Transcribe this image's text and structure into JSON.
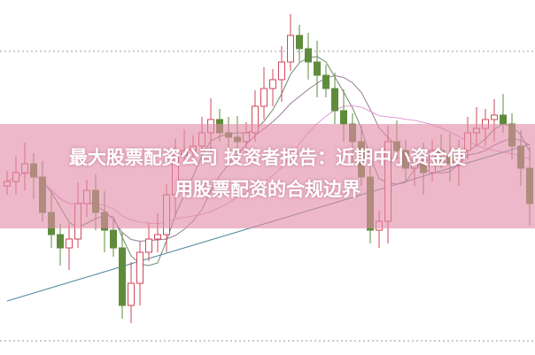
{
  "title_line1": "最大股票配资公司 投资者报告：近期中小资金使",
  "title_line2": "用股票配资的合规边界",
  "colors": {
    "up": "#d0475a",
    "down": "#5e8c3c",
    "banner": "#e28ca8",
    "ma_lines": [
      "#6e8a6e",
      "#9a7a9a",
      "#e39ad8",
      "#4a8a9a"
    ]
  },
  "chart_data": {
    "type": "candlestick",
    "closes": [
      195,
      205,
      215,
      200,
      160,
      135,
      120,
      130,
      170,
      185,
      160,
      140,
      120,
      55,
      80,
      115,
      130,
      135,
      180,
      225,
      230,
      235,
      250,
      265,
      250,
      245,
      240,
      250,
      280,
      300,
      310,
      330,
      360,
      345,
      330,
      315,
      300,
      275,
      260,
      240,
      200,
      140,
      150,
      240,
      230,
      210,
      215,
      205,
      230,
      225,
      215,
      230,
      250,
      255,
      265,
      270,
      260,
      235,
      210,
      170
    ],
    "moving_averages": [
      5,
      10,
      20,
      60
    ]
  }
}
